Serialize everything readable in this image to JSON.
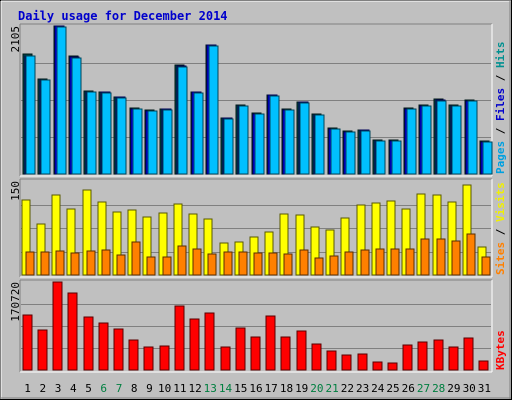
{
  "chart_data": {
    "type": "bar",
    "title": "Daily usage for December 2014",
    "categories": [
      "1",
      "2",
      "3",
      "4",
      "5",
      "6",
      "7",
      "8",
      "9",
      "10",
      "11",
      "12",
      "13",
      "14",
      "15",
      "16",
      "17",
      "18",
      "19",
      "20",
      "21",
      "22",
      "23",
      "24",
      "25",
      "26",
      "27",
      "28",
      "29",
      "30",
      "31"
    ],
    "weekend_days": [
      "6",
      "7",
      "13",
      "14",
      "20",
      "21",
      "27",
      "28"
    ],
    "weekend_color": "#007f40",
    "weekday_color": "#000000",
    "panels": [
      {
        "name": "top",
        "ymax": 2105,
        "ytick": "2105",
        "side_labels": [
          {
            "text": "Pages",
            "color": "#00a0e0"
          },
          {
            "text": " / ",
            "color": "#000000"
          },
          {
            "text": "Files",
            "color": "#0000cc"
          },
          {
            "text": " / ",
            "color": "#000000"
          },
          {
            "text": "Hits",
            "color": "#009090"
          }
        ],
        "series": [
          {
            "name": "Hits",
            "color": "#004444",
            "values": [
              1700,
              1350,
              2105,
              1680,
              1180,
              1170,
              1100,
              940,
              910,
              930,
              1550,
              1170,
              1840,
              800,
              980,
              870,
              1130,
              920,
              1030,
              855,
              650,
              610,
              630,
              480,
              480,
              935,
              980,
              1060,
              980,
              1050,
              470
            ]
          },
          {
            "name": "Files",
            "color": "#0000ff",
            "values": [
              1685,
              1340,
              2100,
              1660,
              1170,
              1160,
              1090,
              930,
              900,
              920,
              1530,
              1160,
              1830,
              790,
              970,
              860,
              1120,
              910,
              1020,
              845,
              640,
              600,
              620,
              470,
              470,
              925,
              970,
              1050,
              970,
              1040,
              460
            ]
          },
          {
            "name": "Pages",
            "color": "#00c0ff",
            "values": [
              1680,
              1335,
              2095,
              1650,
              1165,
              1155,
              1085,
              925,
              895,
              915,
              1520,
              1155,
              1820,
              785,
              965,
              855,
              1115,
              905,
              1015,
              840,
              635,
              595,
              615,
              465,
              465,
              920,
              965,
              1045,
              965,
              1035,
              455
            ]
          }
        ]
      },
      {
        "name": "middle",
        "ymax": 150,
        "ytick": "150",
        "side_labels": [
          {
            "text": "Sites",
            "color": "#ff8000"
          },
          {
            "text": " / ",
            "color": "#000000"
          },
          {
            "text": "Visits",
            "color": "#f0f000"
          }
        ],
        "series": [
          {
            "name": "Visits",
            "color": "#ffff00",
            "values": [
              120,
              82,
              128,
              106,
              136,
              116,
              101,
              104,
              92,
              99,
              113,
              97,
              90,
              51,
              52,
              60,
              69,
              98,
              95,
              76,
              72,
              91,
              112,
              115,
              118,
              106,
              129,
              128,
              117,
              143,
              45
            ]
          },
          {
            "name": "Sites",
            "color": "#ff8000",
            "values": [
              36,
              36,
              38,
              35,
              38,
              40,
              32,
              52,
              29,
              29,
              47,
              41,
              33,
              36,
              36,
              35,
              35,
              33,
              40,
              27,
              31,
              37,
              40,
              42,
              41,
              41,
              58,
              57,
              55,
              65,
              28
            ]
          }
        ]
      },
      {
        "name": "bottom",
        "ymax": 170720,
        "ytick": "170720",
        "side_labels": [
          {
            "text": "KBytes",
            "color": "#ff0000"
          }
        ],
        "series": [
          {
            "name": "KBytes",
            "color": "#ff0000",
            "values": [
              106000,
              77000,
              170720,
              150000,
              102000,
              91000,
              80000,
              59000,
              45000,
              47000,
              124000,
              99000,
              110000,
              44000,
              81000,
              64000,
              104000,
              64000,
              76000,
              51000,
              37000,
              29000,
              32000,
              16000,
              14000,
              48000,
              55000,
              59000,
              45000,
              63000,
              18000
            ]
          }
        ]
      }
    ]
  }
}
